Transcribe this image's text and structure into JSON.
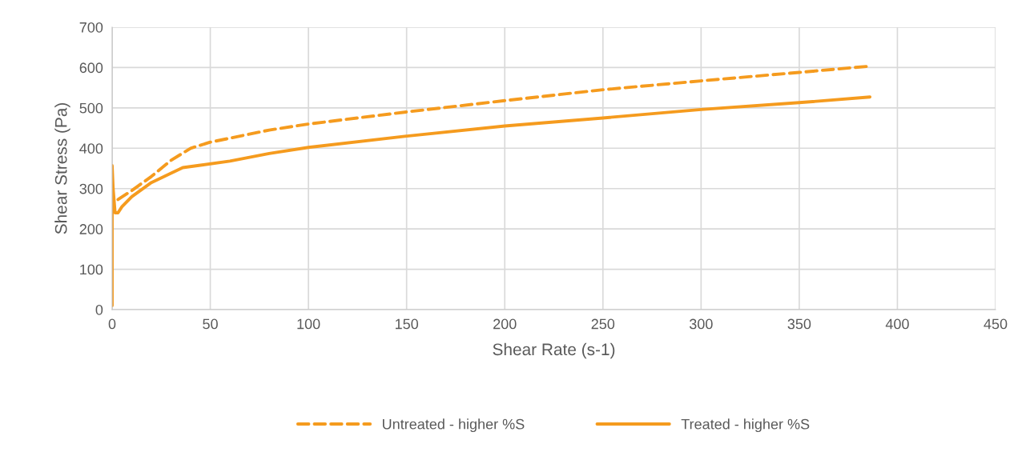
{
  "chart_data": {
    "type": "line",
    "xlabel": "Shear Rate (s-1)",
    "ylabel": "Shear Stress (Pa)",
    "xlim": [
      0,
      450
    ],
    "xticks": [
      0,
      50,
      100,
      150,
      200,
      250,
      300,
      350,
      400,
      450
    ],
    "ylim": [
      0,
      700
    ],
    "yticks": [
      0,
      100,
      200,
      300,
      400,
      500,
      600,
      700
    ],
    "grid": true,
    "legend": "bottom",
    "marker": "none",
    "series": [
      {
        "name": "Untreated - higher %S",
        "color": "#f59b1e",
        "line_style": "dashed",
        "x": [
          3,
          10,
          20,
          30,
          40,
          50,
          60,
          80,
          100,
          150,
          200,
          250,
          300,
          350,
          385
        ],
        "values": [
          273,
          295,
          330,
          370,
          400,
          415,
          425,
          445,
          460,
          490,
          518,
          545,
          567,
          588,
          603
        ]
      },
      {
        "name": "Treated - higher %S",
        "color": "#f59b1e",
        "line_style": "solid",
        "x": [
          0,
          0,
          0.5,
          1.5,
          3,
          5,
          10,
          20,
          30,
          36,
          45,
          60,
          80,
          100,
          150,
          200,
          250,
          300,
          350,
          386
        ],
        "values": [
          10,
          357,
          300,
          240,
          240,
          255,
          280,
          315,
          338,
          352,
          358,
          368,
          387,
          402,
          430,
          455,
          475,
          496,
          513,
          527
        ]
      }
    ]
  }
}
